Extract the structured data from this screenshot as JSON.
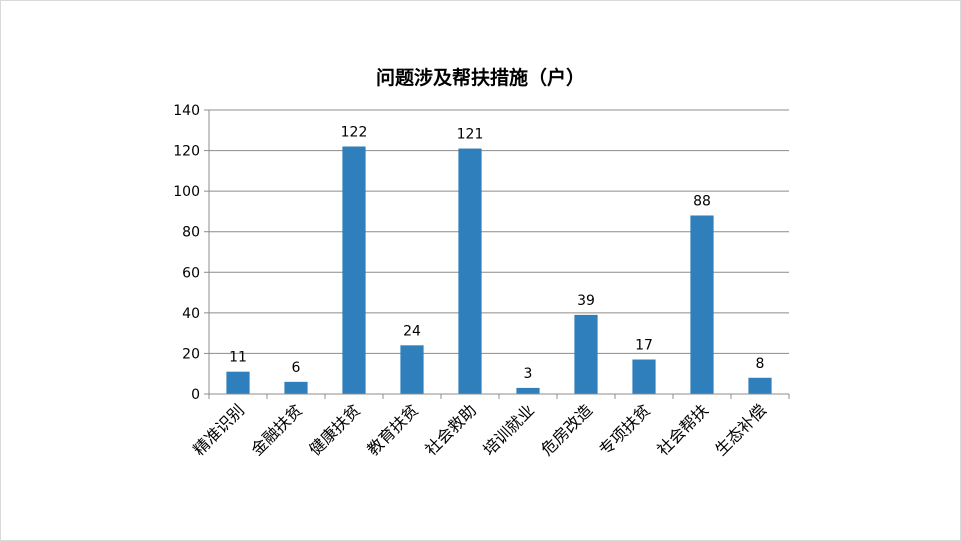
{
  "chart_data": {
    "type": "bar",
    "title": "问题涉及帮扶措施（户）",
    "categories": [
      "精准识别",
      "金融扶贫",
      "健康扶贫",
      "教育扶贫",
      "社会救助",
      "培训就业",
      "危房改造",
      "专项扶贫",
      "社会帮扶",
      "生态补偿"
    ],
    "values": [
      11,
      6,
      122,
      24,
      121,
      3,
      39,
      17,
      88,
      8
    ],
    "ylim": [
      0,
      140
    ],
    "yticks": [
      0,
      20,
      40,
      60,
      80,
      100,
      120,
      140
    ],
    "xlabel": "",
    "ylabel": "",
    "grid": true,
    "legend": "none",
    "bar_color": "#2e7fbb",
    "data_labels": true
  }
}
